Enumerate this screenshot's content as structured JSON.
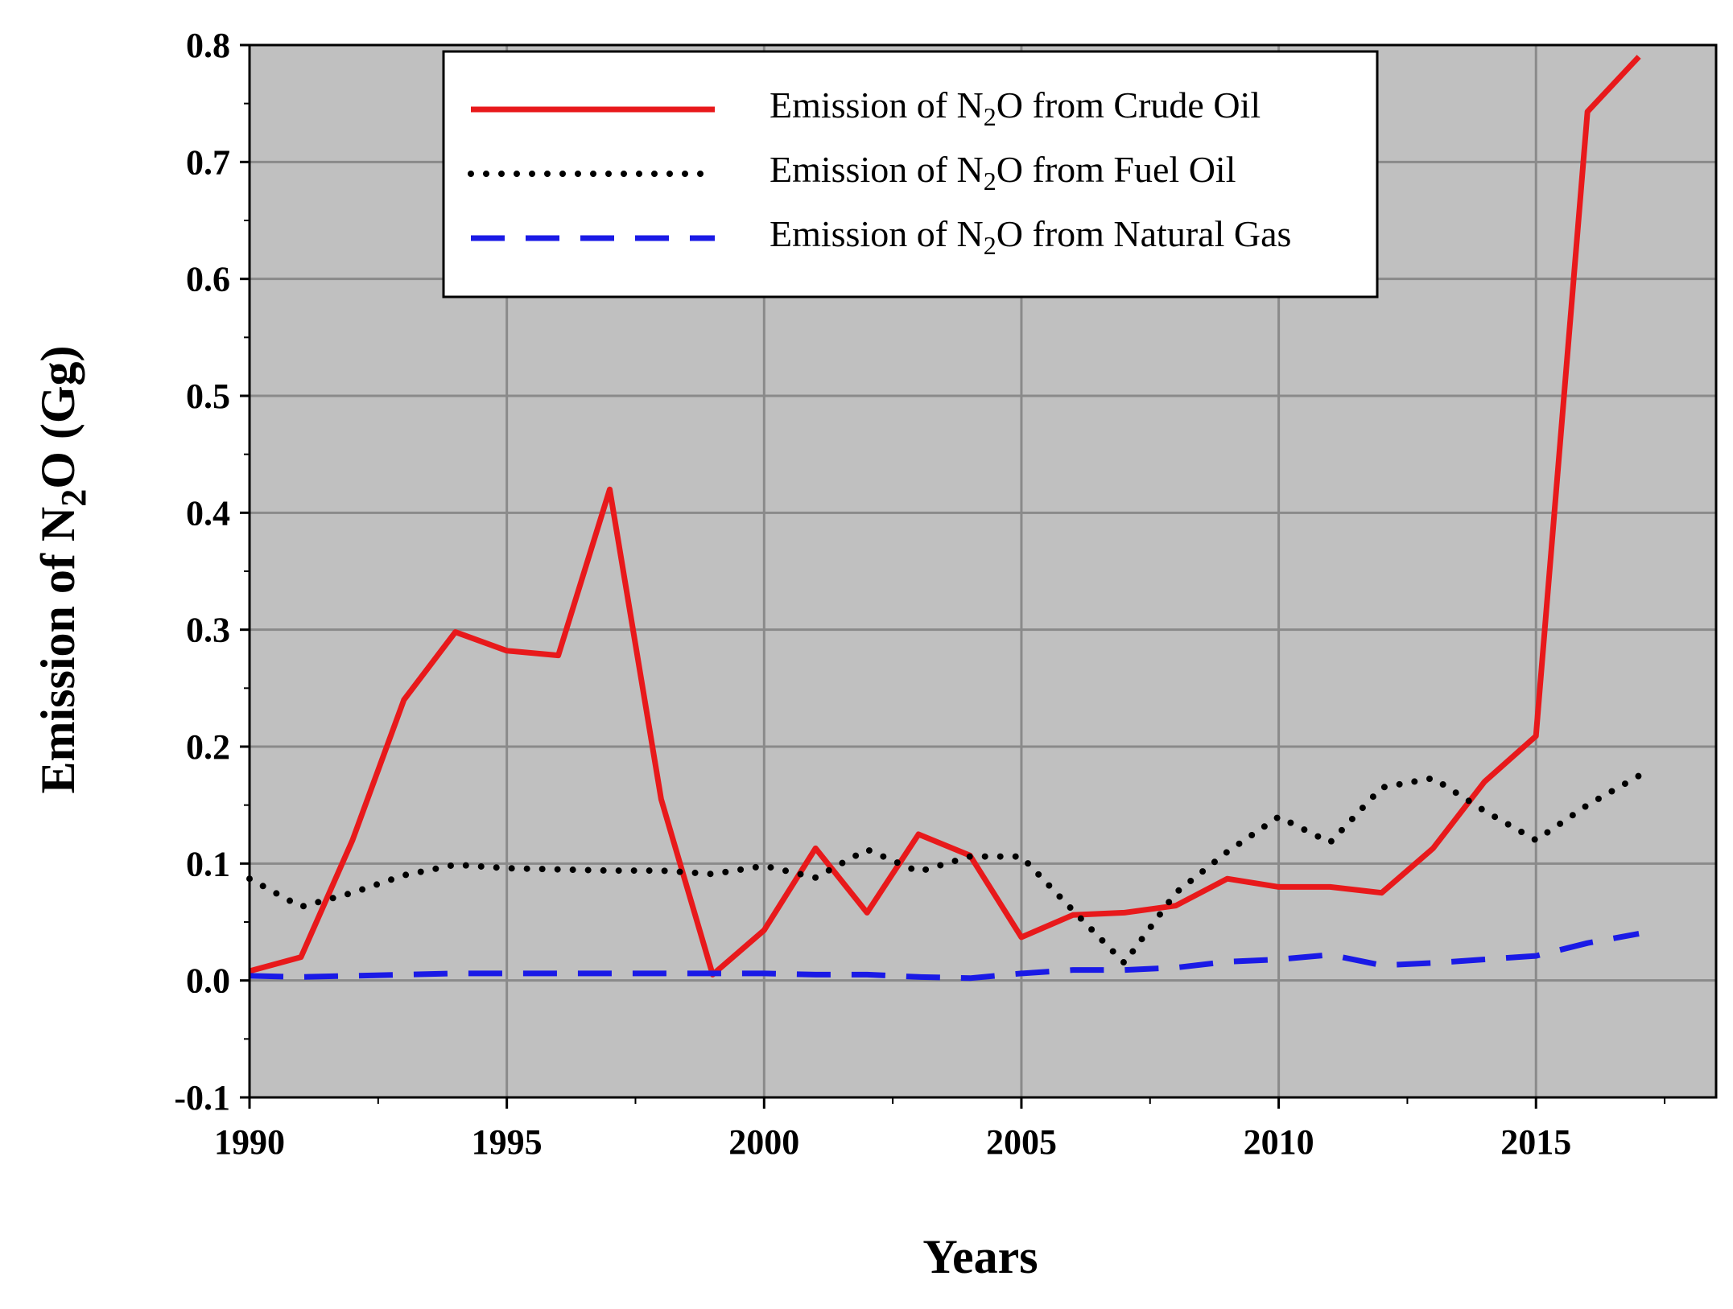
{
  "chart_data": {
    "type": "line",
    "title": "",
    "xlabel": "Years",
    "ylabel": {
      "prefix": "Emission of N",
      "subscript": "2",
      "suffix": "O (Gg)"
    },
    "xlim": [
      1990,
      2018.5
    ],
    "ylim": [
      -0.1,
      0.8
    ],
    "xticks": [
      "1990",
      "1995",
      "2000",
      "2005",
      "2010",
      "2015"
    ],
    "yticks": [
      "-0.1",
      "0.0",
      "0.1",
      "0.2",
      "0.3",
      "0.4",
      "0.5",
      "0.6",
      "0.7",
      "0.8"
    ],
    "grid": true,
    "legend_position": "top-center",
    "x": [
      1990,
      1991,
      1992,
      1993,
      1994,
      1995,
      1996,
      1997,
      1998,
      1999,
      2000,
      2001,
      2002,
      2003,
      2004,
      2005,
      2006,
      2007,
      2008,
      2009,
      2010,
      2011,
      2012,
      2013,
      2014,
      2015,
      2016,
      2017
    ],
    "series": [
      {
        "name": "Emission of N2O from Crude Oil",
        "legend": {
          "prefix": "Emission of N",
          "subscript": "2",
          "suffix": "O from Crude Oil"
        },
        "color": "#e8191b",
        "style": "solid",
        "values": [
          0.008,
          0.02,
          0.12,
          0.24,
          0.298,
          0.282,
          0.278,
          0.42,
          0.155,
          0.005,
          0.043,
          0.113,
          0.058,
          0.125,
          0.107,
          0.037,
          0.056,
          0.058,
          0.064,
          0.087,
          0.08,
          0.08,
          0.075,
          0.113,
          0.17,
          0.209,
          0.743,
          0.79
        ]
      },
      {
        "name": "Emission of N2O from Fuel Oil",
        "legend": {
          "prefix": "Emission of N",
          "subscript": "2",
          "suffix": "O from Fuel Oil"
        },
        "color": "#000000",
        "style": "dotted",
        "values": [
          0.087,
          0.063,
          0.075,
          0.09,
          0.099,
          0.096,
          0.095,
          0.094,
          0.094,
          0.091,
          0.098,
          0.088,
          0.112,
          0.093,
          0.106,
          0.106,
          0.06,
          0.015,
          0.075,
          0.11,
          0.14,
          0.118,
          0.165,
          0.173,
          0.145,
          0.12,
          0.15,
          0.175
        ]
      },
      {
        "name": "Emission of N2O from Natural Gas",
        "legend": {
          "prefix": "Emission of N",
          "subscript": "2",
          "suffix": "O from Natural Gas"
        },
        "color": "#1a1ae6",
        "style": "dashed",
        "values": [
          0.004,
          0.003,
          0.004,
          0.005,
          0.006,
          0.006,
          0.006,
          0.006,
          0.006,
          0.006,
          0.006,
          0.005,
          0.005,
          0.003,
          0.002,
          0.006,
          0.009,
          0.009,
          0.011,
          0.016,
          0.018,
          0.022,
          0.013,
          0.015,
          0.018,
          0.021,
          0.032,
          0.04
        ]
      }
    ]
  }
}
